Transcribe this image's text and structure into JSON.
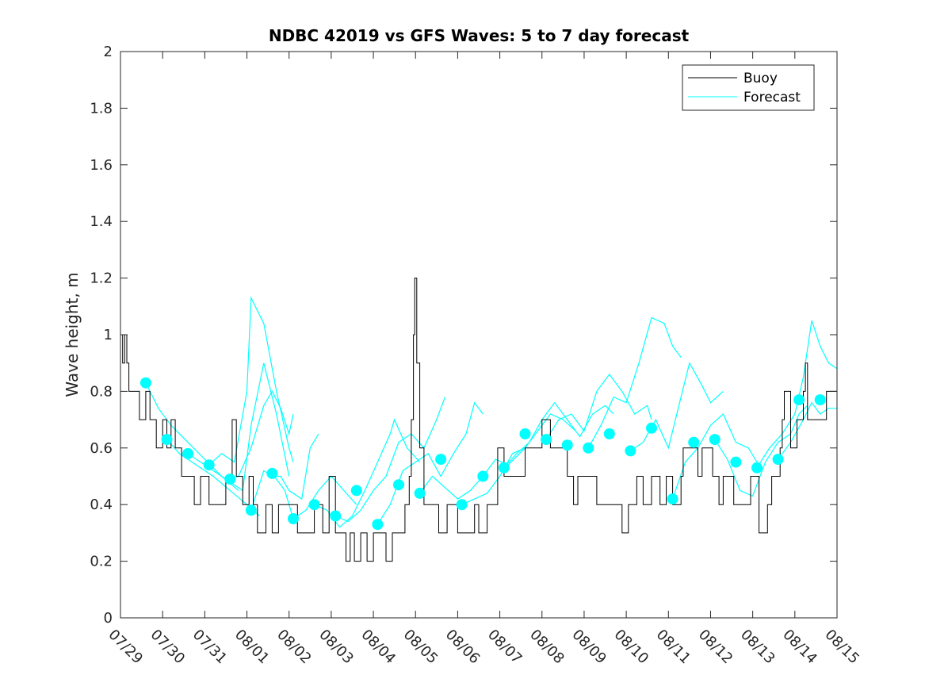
{
  "chart_data": {
    "type": "line",
    "title": "NDBC 42019 vs GFS Waves: 5 to 7 day forecast",
    "xlabel": "",
    "ylabel": "Wave height, m",
    "ylim": [
      0,
      2
    ],
    "xlim": [
      "07/29",
      "08/15"
    ],
    "grid": false,
    "legend_position": "top-right",
    "yticks": [
      "0",
      "0.2",
      "0.4",
      "0.6",
      "0.8",
      "1",
      "1.2",
      "1.4",
      "1.6",
      "1.8",
      "2"
    ],
    "xticks": [
      "07/29",
      "07/30",
      "07/31",
      "08/01",
      "08/02",
      "08/03",
      "08/04",
      "08/05",
      "08/06",
      "08/07",
      "08/08",
      "08/09",
      "08/10",
      "08/11",
      "08/12",
      "08/13",
      "08/14",
      "08/15"
    ],
    "legend": [
      {
        "label": "Buoy",
        "color": "#000000"
      },
      {
        "label": "Forecast",
        "color": "#00ffff"
      }
    ],
    "buoy": {
      "name": "Buoy",
      "color": "#000000",
      "points": [
        [
          0.0,
          1.0
        ],
        [
          0.05,
          0.9
        ],
        [
          0.1,
          1.0
        ],
        [
          0.15,
          0.9
        ],
        [
          0.2,
          0.8
        ],
        [
          0.45,
          0.7
        ],
        [
          0.6,
          0.8
        ],
        [
          0.7,
          0.7
        ],
        [
          0.85,
          0.6
        ],
        [
          1.0,
          0.7
        ],
        [
          1.1,
          0.6
        ],
        [
          1.2,
          0.7
        ],
        [
          1.3,
          0.6
        ],
        [
          1.45,
          0.5
        ],
        [
          1.6,
          0.5
        ],
        [
          1.75,
          0.4
        ],
        [
          1.9,
          0.5
        ],
        [
          2.1,
          0.4
        ],
        [
          2.3,
          0.4
        ],
        [
          2.5,
          0.5
        ],
        [
          2.65,
          0.7
        ],
        [
          2.75,
          0.5
        ],
        [
          2.9,
          0.4
        ],
        [
          3.05,
          0.5
        ],
        [
          3.15,
          0.4
        ],
        [
          3.25,
          0.3
        ],
        [
          3.45,
          0.4
        ],
        [
          3.6,
          0.3
        ],
        [
          3.75,
          0.4
        ],
        [
          4.1,
          0.4
        ],
        [
          4.2,
          0.3
        ],
        [
          4.6,
          0.4
        ],
        [
          4.8,
          0.3
        ],
        [
          4.95,
          0.5
        ],
        [
          5.1,
          0.3
        ],
        [
          5.35,
          0.2
        ],
        [
          5.45,
          0.3
        ],
        [
          5.55,
          0.2
        ],
        [
          5.7,
          0.3
        ],
        [
          5.85,
          0.2
        ],
        [
          6.0,
          0.3
        ],
        [
          6.3,
          0.2
        ],
        [
          6.45,
          0.3
        ],
        [
          6.65,
          0.3
        ],
        [
          6.75,
          0.4
        ],
        [
          6.85,
          0.5
        ],
        [
          6.9,
          0.7
        ],
        [
          6.95,
          1.0
        ],
        [
          6.98,
          1.2
        ],
        [
          7.03,
          0.9
        ],
        [
          7.1,
          0.6
        ],
        [
          7.2,
          0.4
        ],
        [
          7.5,
          0.4
        ],
        [
          7.55,
          0.3
        ],
        [
          7.75,
          0.4
        ],
        [
          8.0,
          0.3
        ],
        [
          8.4,
          0.4
        ],
        [
          8.5,
          0.3
        ],
        [
          8.7,
          0.4
        ],
        [
          8.95,
          0.6
        ],
        [
          9.1,
          0.5
        ],
        [
          9.5,
          0.5
        ],
        [
          9.6,
          0.6
        ],
        [
          9.9,
          0.6
        ],
        [
          10.0,
          0.7
        ],
        [
          10.2,
          0.6
        ],
        [
          10.6,
          0.5
        ],
        [
          10.75,
          0.4
        ],
        [
          10.85,
          0.5
        ],
        [
          11.1,
          0.5
        ],
        [
          11.3,
          0.4
        ],
        [
          11.55,
          0.4
        ],
        [
          11.8,
          0.4
        ],
        [
          11.9,
          0.3
        ],
        [
          12.05,
          0.4
        ],
        [
          12.25,
          0.5
        ],
        [
          12.4,
          0.4
        ],
        [
          12.6,
          0.5
        ],
        [
          12.8,
          0.4
        ],
        [
          12.95,
          0.5
        ],
        [
          13.1,
          0.4
        ],
        [
          13.3,
          0.5
        ],
        [
          13.35,
          0.6
        ],
        [
          13.55,
          0.6
        ],
        [
          13.7,
          0.5
        ],
        [
          13.8,
          0.6
        ],
        [
          14.05,
          0.5
        ],
        [
          14.2,
          0.4
        ],
        [
          14.3,
          0.5
        ],
        [
          14.55,
          0.4
        ],
        [
          14.9,
          0.4
        ],
        [
          14.95,
          0.5
        ],
        [
          15.15,
          0.3
        ],
        [
          15.35,
          0.4
        ],
        [
          15.45,
          0.5
        ],
        [
          15.65,
          0.6
        ],
        [
          15.7,
          0.7
        ],
        [
          15.75,
          0.8
        ],
        [
          15.9,
          0.6
        ],
        [
          16.05,
          0.7
        ],
        [
          16.2,
          0.8
        ],
        [
          16.25,
          0.9
        ],
        [
          16.3,
          0.7
        ],
        [
          16.5,
          0.7
        ],
        [
          16.75,
          0.8
        ],
        [
          17.0,
          0.8
        ]
      ]
    },
    "forecast_points": {
      "name": "Forecast",
      "color": "#00ffff",
      "points": [
        [
          0.6,
          0.83
        ],
        [
          1.1,
          0.63
        ],
        [
          1.6,
          0.58
        ],
        [
          2.1,
          0.54
        ],
        [
          2.6,
          0.49
        ],
        [
          3.1,
          0.38
        ],
        [
          3.6,
          0.51
        ],
        [
          4.1,
          0.35
        ],
        [
          4.6,
          0.4
        ],
        [
          5.1,
          0.36
        ],
        [
          5.6,
          0.45
        ],
        [
          6.1,
          0.33
        ],
        [
          6.6,
          0.47
        ],
        [
          7.1,
          0.44
        ],
        [
          7.6,
          0.56
        ],
        [
          8.1,
          0.4
        ],
        [
          8.6,
          0.5
        ],
        [
          9.1,
          0.53
        ],
        [
          9.6,
          0.65
        ],
        [
          10.1,
          0.63
        ],
        [
          10.6,
          0.61
        ],
        [
          11.1,
          0.6
        ],
        [
          11.6,
          0.65
        ],
        [
          12.1,
          0.59
        ],
        [
          12.6,
          0.67
        ],
        [
          13.1,
          0.42
        ],
        [
          13.6,
          0.62
        ],
        [
          14.1,
          0.63
        ],
        [
          14.6,
          0.55
        ],
        [
          15.1,
          0.53
        ],
        [
          15.6,
          0.56
        ],
        [
          16.1,
          0.77
        ],
        [
          16.6,
          0.77
        ]
      ]
    },
    "forecast_tracks": [
      [
        [
          0.6,
          0.83
        ],
        [
          0.9,
          0.74
        ],
        [
          1.2,
          0.68
        ],
        [
          1.6,
          0.62
        ],
        [
          2.0,
          0.56
        ],
        [
          2.4,
          0.5
        ],
        [
          2.8,
          0.45
        ]
      ],
      [
        [
          1.1,
          0.63
        ],
        [
          1.4,
          0.58
        ],
        [
          1.8,
          0.54
        ],
        [
          2.2,
          0.5
        ],
        [
          2.6,
          0.45
        ],
        [
          3.0,
          0.4
        ],
        [
          3.3,
          0.36
        ]
      ],
      [
        [
          1.6,
          0.58
        ],
        [
          1.9,
          0.55
        ],
        [
          2.2,
          0.52
        ],
        [
          2.6,
          0.48
        ],
        [
          2.9,
          0.45
        ],
        [
          3.1,
          0.68
        ],
        [
          3.4,
          0.9
        ],
        [
          3.7,
          0.72
        ],
        [
          4.0,
          0.5
        ]
      ],
      [
        [
          2.1,
          0.54
        ],
        [
          2.4,
          0.58
        ],
        [
          2.7,
          0.55
        ],
        [
          3.0,
          0.8
        ],
        [
          3.1,
          1.13
        ],
        [
          3.4,
          1.04
        ],
        [
          3.7,
          0.8
        ],
        [
          4.0,
          0.6
        ],
        [
          4.1,
          0.55
        ]
      ],
      [
        [
          2.6,
          0.49
        ],
        [
          2.8,
          0.5
        ],
        [
          3.1,
          0.6
        ],
        [
          3.4,
          0.75
        ],
        [
          3.6,
          0.8
        ],
        [
          3.8,
          0.74
        ],
        [
          4.0,
          0.65
        ],
        [
          4.1,
          0.72
        ]
      ],
      [
        [
          3.1,
          0.38
        ],
        [
          3.4,
          0.52
        ],
        [
          3.6,
          0.5
        ],
        [
          3.8,
          0.5
        ],
        [
          4.0,
          0.45
        ],
        [
          4.3,
          0.42
        ],
        [
          4.5,
          0.6
        ],
        [
          4.7,
          0.65
        ]
      ],
      [
        [
          3.6,
          0.51
        ],
        [
          3.9,
          0.45
        ],
        [
          4.1,
          0.35
        ],
        [
          4.4,
          0.38
        ],
        [
          4.7,
          0.45
        ],
        [
          5.0,
          0.5
        ],
        [
          5.3,
          0.45
        ],
        [
          5.6,
          0.4
        ]
      ],
      [
        [
          4.6,
          0.4
        ],
        [
          4.9,
          0.38
        ],
        [
          5.2,
          0.32
        ],
        [
          5.5,
          0.36
        ],
        [
          5.8,
          0.45
        ],
        [
          6.1,
          0.55
        ],
        [
          6.4,
          0.65
        ],
        [
          6.5,
          0.7
        ],
        [
          6.8,
          0.6
        ],
        [
          7.1,
          0.55
        ]
      ],
      [
        [
          5.1,
          0.36
        ],
        [
          5.4,
          0.34
        ],
        [
          5.7,
          0.38
        ],
        [
          6.0,
          0.45
        ],
        [
          6.3,
          0.5
        ],
        [
          6.6,
          0.62
        ],
        [
          6.9,
          0.65
        ],
        [
          7.2,
          0.6
        ],
        [
          7.5,
          0.7
        ],
        [
          7.7,
          0.78
        ]
      ],
      [
        [
          6.1,
          0.33
        ],
        [
          6.4,
          0.4
        ],
        [
          6.7,
          0.52
        ],
        [
          7.0,
          0.55
        ],
        [
          7.3,
          0.58
        ],
        [
          7.6,
          0.5
        ],
        [
          7.9,
          0.58
        ],
        [
          8.2,
          0.65
        ],
        [
          8.4,
          0.76
        ],
        [
          8.6,
          0.72
        ]
      ],
      [
        [
          7.1,
          0.44
        ],
        [
          7.4,
          0.5
        ],
        [
          7.7,
          0.46
        ],
        [
          8.0,
          0.42
        ],
        [
          8.3,
          0.45
        ],
        [
          8.6,
          0.5
        ],
        [
          8.9,
          0.56
        ],
        [
          9.2,
          0.54
        ],
        [
          9.6,
          0.6
        ]
      ],
      [
        [
          8.1,
          0.4
        ],
        [
          8.4,
          0.42
        ],
        [
          8.7,
          0.44
        ],
        [
          9.0,
          0.5
        ],
        [
          9.3,
          0.58
        ],
        [
          9.6,
          0.6
        ],
        [
          9.9,
          0.66
        ],
        [
          10.2,
          0.72
        ],
        [
          10.5,
          0.7
        ],
        [
          10.8,
          0.66
        ]
      ],
      [
        [
          9.1,
          0.53
        ],
        [
          9.4,
          0.58
        ],
        [
          9.7,
          0.62
        ],
        [
          10.0,
          0.7
        ],
        [
          10.3,
          0.76
        ],
        [
          10.6,
          0.7
        ],
        [
          10.9,
          0.64
        ],
        [
          11.2,
          0.72
        ],
        [
          11.5,
          0.75
        ],
        [
          11.7,
          0.72
        ]
      ],
      [
        [
          10.1,
          0.63
        ],
        [
          10.4,
          0.7
        ],
        [
          10.7,
          0.72
        ],
        [
          11.0,
          0.66
        ],
        [
          11.3,
          0.8
        ],
        [
          11.6,
          0.86
        ],
        [
          11.9,
          0.8
        ],
        [
          12.2,
          0.72
        ],
        [
          12.5,
          0.75
        ],
        [
          12.6,
          0.7
        ]
      ],
      [
        [
          11.1,
          0.6
        ],
        [
          11.4,
          0.68
        ],
        [
          11.7,
          0.78
        ],
        [
          12.0,
          0.76
        ],
        [
          12.3,
          0.9
        ],
        [
          12.6,
          1.06
        ],
        [
          12.9,
          1.04
        ],
        [
          13.1,
          0.96
        ],
        [
          13.3,
          0.92
        ]
      ],
      [
        [
          12.1,
          0.59
        ],
        [
          12.4,
          0.62
        ],
        [
          12.7,
          0.7
        ],
        [
          13.0,
          0.6
        ],
        [
          13.3,
          0.78
        ],
        [
          13.5,
          0.9
        ],
        [
          13.8,
          0.82
        ],
        [
          14.0,
          0.76
        ],
        [
          14.3,
          0.8
        ]
      ],
      [
        [
          13.1,
          0.42
        ],
        [
          13.4,
          0.55
        ],
        [
          13.7,
          0.6
        ],
        [
          14.0,
          0.68
        ],
        [
          14.3,
          0.72
        ],
        [
          14.6,
          0.62
        ],
        [
          14.9,
          0.6
        ],
        [
          15.1,
          0.55
        ]
      ],
      [
        [
          14.1,
          0.63
        ],
        [
          14.4,
          0.56
        ],
        [
          14.7,
          0.45
        ],
        [
          15.0,
          0.43
        ],
        [
          15.3,
          0.55
        ],
        [
          15.6,
          0.62
        ],
        [
          15.9,
          0.65
        ],
        [
          16.1,
          0.72
        ],
        [
          16.3,
          0.75
        ]
      ],
      [
        [
          15.1,
          0.53
        ],
        [
          15.4,
          0.6
        ],
        [
          15.7,
          0.65
        ],
        [
          16.0,
          0.72
        ],
        [
          16.2,
          0.85
        ],
        [
          16.4,
          1.05
        ],
        [
          16.6,
          0.96
        ],
        [
          16.8,
          0.9
        ],
        [
          17.0,
          0.88
        ]
      ],
      [
        [
          15.6,
          0.56
        ],
        [
          15.9,
          0.62
        ],
        [
          16.2,
          0.7
        ],
        [
          16.4,
          0.76
        ],
        [
          16.6,
          0.72
        ],
        [
          16.8,
          0.74
        ],
        [
          17.0,
          0.74
        ]
      ]
    ]
  }
}
